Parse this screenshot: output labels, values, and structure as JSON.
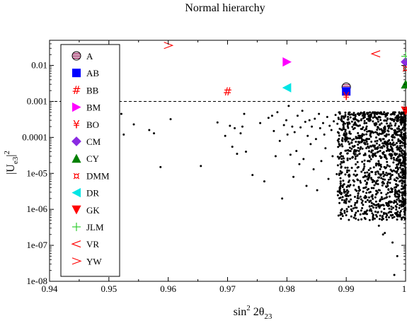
{
  "chart_data": {
    "type": "scatter",
    "title": "Normal hierarchy",
    "xlabel": {
      "main": "sin",
      "sup": "2",
      "mid": " 2θ",
      "sub": "23"
    },
    "ylabel": {
      "main": "|U",
      "sub": "e3",
      "close": "|",
      "sup": "2"
    },
    "xlim": [
      0.94,
      1.0
    ],
    "ylim": [
      1e-08,
      0.05
    ],
    "yscale": "log",
    "grid": false,
    "legend_position": "top-left",
    "x_ticks": [
      {
        "value": 0.94,
        "label": "0.94"
      },
      {
        "value": 0.95,
        "label": "0.95"
      },
      {
        "value": 0.96,
        "label": "0.96"
      },
      {
        "value": 0.97,
        "label": "0.97"
      },
      {
        "value": 0.98,
        "label": "0.98"
      },
      {
        "value": 0.99,
        "label": "0.99"
      },
      {
        "value": 1.0,
        "label": "1"
      }
    ],
    "y_ticks": [
      {
        "value": 0.01,
        "label": "0.01"
      },
      {
        "value": 0.001,
        "label": "0.001"
      },
      {
        "value": 0.0001,
        "label": "0.0001"
      },
      {
        "value": 1e-05,
        "label": "1e-05"
      },
      {
        "value": 1e-06,
        "label": "1e-06"
      },
      {
        "value": 1e-07,
        "label": "1e-07"
      },
      {
        "value": 1e-08,
        "label": "1e-08"
      }
    ],
    "reference_line": {
      "y": 0.001,
      "style": "dashed"
    },
    "models": [
      {
        "name": "A",
        "marker": "striped-circle",
        "color": "#8b0045",
        "x": 0.99,
        "y": 0.0025
      },
      {
        "name": "AB",
        "marker": "square",
        "color": "#0000ff",
        "x": 0.99,
        "y": 0.0019
      },
      {
        "name": "BB",
        "marker": "hash",
        "color": "#ff0000",
        "x": 0.97,
        "y": 0.0019
      },
      {
        "name": "BM",
        "marker": "triangle-right",
        "color": "#ff00ff",
        "x": 0.98,
        "y": 0.0125
      },
      {
        "name": "BO",
        "marker": "yen",
        "color": "#ff0000",
        "x": 0.99,
        "y": 0.0014
      },
      {
        "name": "CM",
        "marker": "diamond",
        "color": "#8a2be2",
        "x": 1.0,
        "y": 0.0125
      },
      {
        "name": "CY",
        "marker": "triangle-up",
        "color": "#008000",
        "x": 1.0,
        "y": 0.003
      },
      {
        "name": "DMM",
        "marker": "currency",
        "color": "#ff0000",
        "x": 1.0,
        "y": 0.0085
      },
      {
        "name": "DR",
        "marker": "triangle-left",
        "color": "#00e5e5",
        "x": 0.98,
        "y": 0.0024
      },
      {
        "name": "GK",
        "marker": "triangle-down",
        "color": "#ff0000",
        "x": 1.0,
        "y": 0.00055
      },
      {
        "name": "JLM",
        "marker": "plus",
        "color": "#32cd32",
        "x": 1.0,
        "y": 0.018
      },
      {
        "name": "VR",
        "marker": "less-than",
        "color": "#ff0000",
        "x": 0.995,
        "y": 0.021
      },
      {
        "name": "YW",
        "marker": "greater-than",
        "color": "#ff0000",
        "x": 0.96,
        "y": 0.036
      }
    ],
    "scatter_points": {
      "color": "#000000",
      "x": [
        0.9521,
        0.9525,
        0.9542,
        0.9568,
        0.9576,
        0.9587,
        0.9604,
        0.9655,
        0.9683,
        0.9696,
        0.9704,
        0.9708,
        0.9712,
        0.9716,
        0.9722,
        0.9725,
        0.9728,
        0.9731,
        0.9742,
        0.9755,
        0.9762,
        0.9769,
        0.9775,
        0.9778,
        0.9781,
        0.9784,
        0.9788,
        0.9792,
        0.9795,
        0.9799,
        0.9801,
        0.9803,
        0.9806,
        0.9809,
        0.9811,
        0.9813,
        0.9816,
        0.9818,
        0.9821,
        0.9823,
        0.9826,
        0.9828,
        0.9831,
        0.9833,
        0.9835,
        0.9838,
        0.984,
        0.9842,
        0.9845,
        0.9847,
        0.9849,
        0.9851,
        0.9854,
        0.9856,
        0.9858,
        0.9861,
        0.9863,
        0.9865,
        0.9868,
        0.987,
        0.9872,
        0.9875,
        0.9877,
        0.9879,
        0.9882,
        0.9884,
        0.9886,
        0.9889,
        0.9891,
        0.9893,
        0.9896,
        0.9898,
        0.9965,
        0.9972,
        0.9981,
        0.9986,
        0.9978,
        0.9962,
        0.9955,
        0.9948,
        0.9943
      ],
      "y": [
        0.00045,
        0.00012,
        0.00023,
        0.00016,
        0.00013,
        1.5e-05,
        0.00032,
        1.6e-05,
        0.00026,
        0.00011,
        0.00021,
        5.5e-05,
        0.00018,
        3.5e-05,
        0.00013,
        0.0002,
        0.00045,
        4e-05,
        9e-06,
        0.00025,
        6e-06,
        0.00035,
        0.0004,
        0.00015,
        3e-05,
        0.0005,
        8e-05,
        2e-06,
        0.00022,
        0.0003,
        0.00012,
        0.00075,
        3.3e-05,
        0.0002,
        8e-06,
        0.00014,
        4.2e-05,
        0.0004,
        1.8e-05,
        0.00019,
        0.00055,
        2.5e-05,
        0.00027,
        4.5e-06,
        0.00011,
        0.0003,
        6.5e-05,
        0.0002,
        1.3e-05,
        0.00033,
        9e-05,
        3.4e-06,
        0.00045,
        0.00018,
        2.2e-05,
        0.00025,
        0.00012,
        5e-05,
        0.00037,
        7e-06,
        0.00021,
        0.00016,
        3e-05,
        0.00028,
        0.00042,
        9.5e-06,
        0.00014,
        6e-05,
        0.00031,
        2e-05,
        0.00017,
        0.00024,
        2.2e-07,
        6e-07,
        1.5e-08,
        5e-08,
        1.2e-07,
        2e-07,
        3.5e-07,
        5.5e-07,
        1.5e-06
      ]
    }
  }
}
